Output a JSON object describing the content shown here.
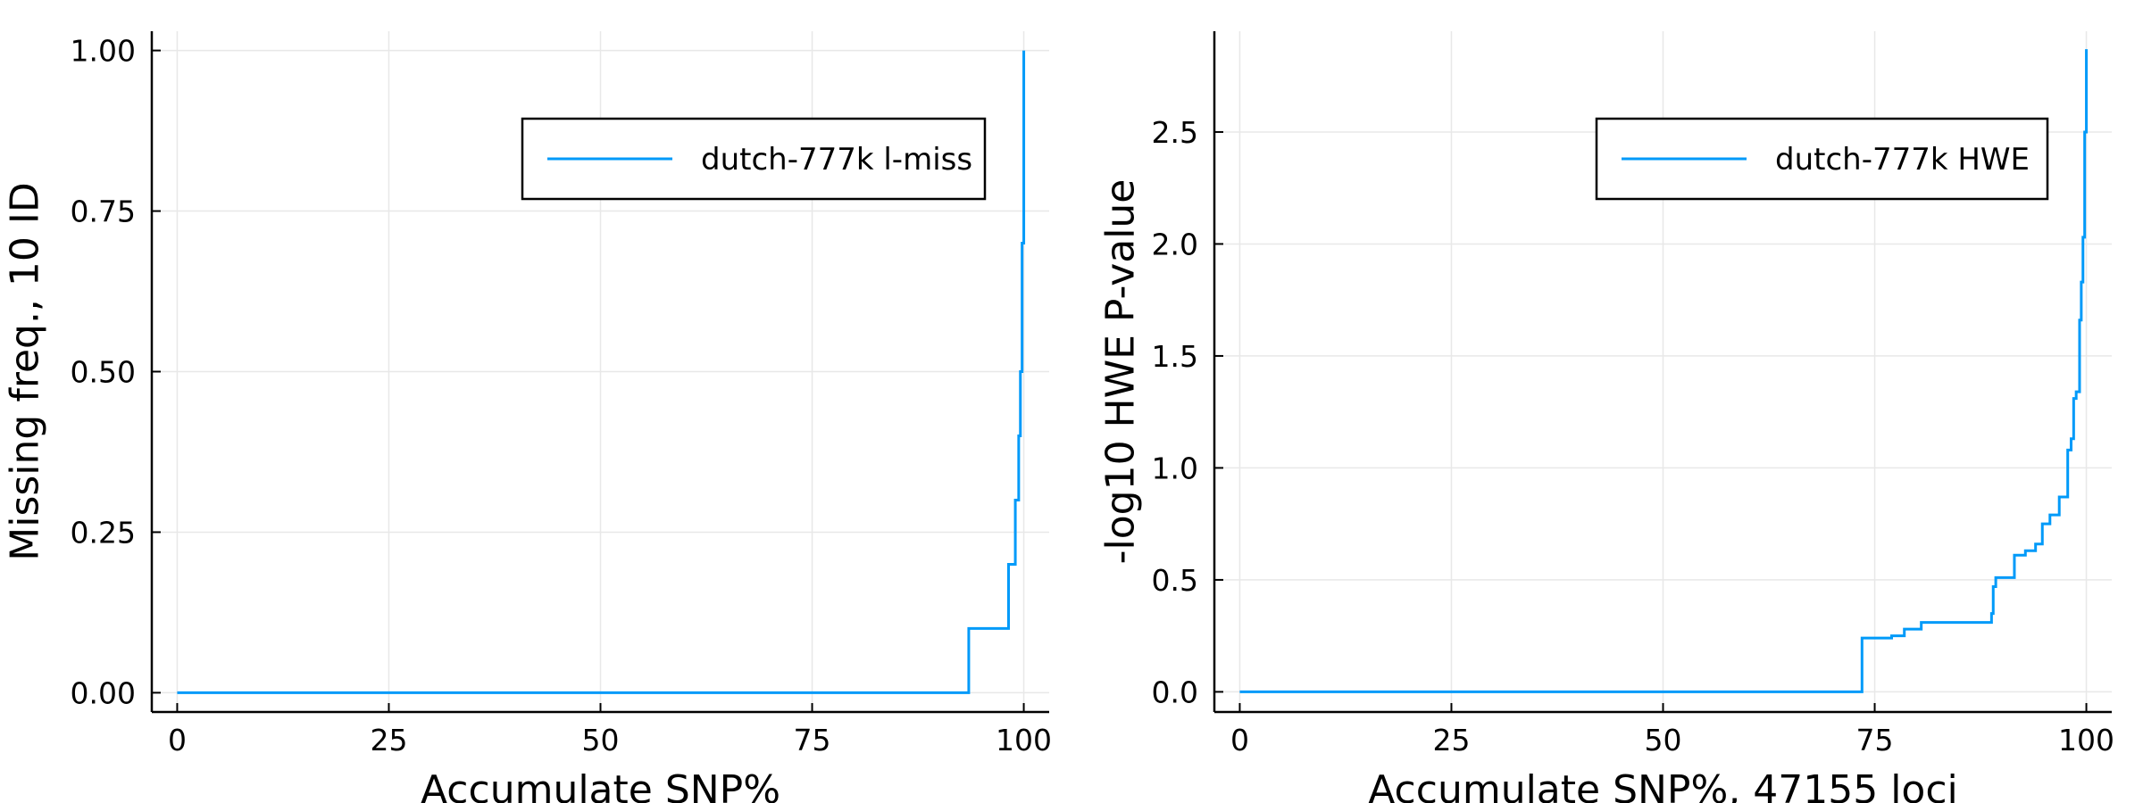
{
  "chart_data": [
    {
      "type": "line",
      "xlabel": "Accumulate SNP%",
      "ylabel": "Missing freq., 10 ID",
      "xlim": [
        -3,
        103
      ],
      "ylim": [
        -0.03,
        1.03
      ],
      "xticks": [
        0,
        25,
        50,
        75,
        100
      ],
      "xtick_labels": [
        "0",
        "25",
        "50",
        "75",
        "100"
      ],
      "yticks": [
        0,
        0.25,
        0.5,
        0.75,
        1.0
      ],
      "ytick_labels": [
        "0.00",
        "0.25",
        "0.50",
        "0.75",
        "1.00"
      ],
      "grid": true,
      "legend_position": "top-right",
      "series": [
        {
          "name": "dutch-777k l-miss",
          "color": "#009af9",
          "step": true,
          "x": [
            0,
            93.5,
            98.2,
            99.0,
            99.4,
            99.6,
            99.8,
            100
          ],
          "y": [
            0.0,
            0.1,
            0.2,
            0.3,
            0.4,
            0.5,
            0.7,
            1.0
          ]
        }
      ]
    },
    {
      "type": "line",
      "xlabel": "Accumulate SNP%, 47155 loci",
      "ylabel": "-log10 HWE P-value",
      "xlim": [
        -3,
        103
      ],
      "ylim": [
        -0.09,
        2.95
      ],
      "xticks": [
        0,
        25,
        50,
        75,
        100
      ],
      "xtick_labels": [
        "0",
        "25",
        "50",
        "75",
        "100"
      ],
      "yticks": [
        0,
        0.5,
        1.0,
        1.5,
        2.0,
        2.5
      ],
      "ytick_labels": [
        "0.0",
        "0.5",
        "1.0",
        "1.5",
        "2.0",
        "2.5"
      ],
      "grid": true,
      "legend_position": "top-right",
      "series": [
        {
          "name": "dutch-777k HWE",
          "color": "#009af9",
          "step": true,
          "x": [
            0,
            73.5,
            77.0,
            78.5,
            80.5,
            88.8,
            89.0,
            89.3,
            91.5,
            92.8,
            94.0,
            94.8,
            95.7,
            96.8,
            97.8,
            98.2,
            98.5,
            98.8,
            99.2,
            99.4,
            99.6,
            99.8,
            100
          ],
          "y": [
            0.0,
            0.24,
            0.25,
            0.28,
            0.31,
            0.35,
            0.47,
            0.51,
            0.61,
            0.63,
            0.66,
            0.75,
            0.79,
            0.87,
            1.08,
            1.13,
            1.31,
            1.34,
            1.66,
            1.83,
            2.03,
            2.5,
            2.87
          ]
        }
      ]
    }
  ]
}
